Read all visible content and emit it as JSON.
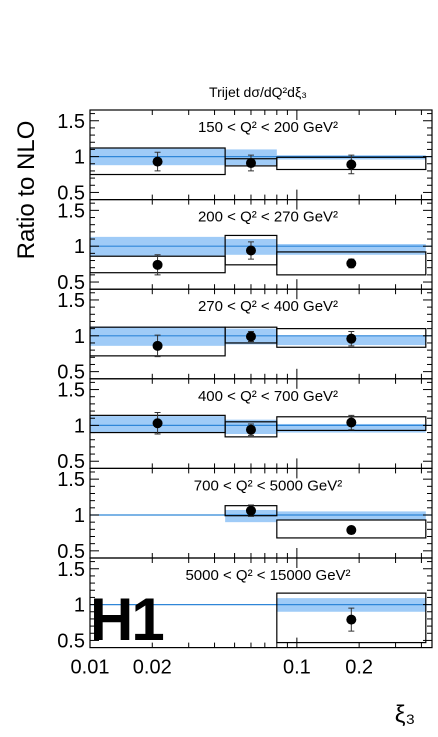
{
  "figure": {
    "title": "Trijet dσ/dQ²dξ₃",
    "ylabel": "Ratio to NLO",
    "xlabel": "ξ₃",
    "logo": "H1"
  },
  "chart_data": {
    "type": "scatter",
    "x_scale": "log",
    "xlim": [
      0.01,
      0.45
    ],
    "ylim": [
      0.4,
      1.65
    ],
    "x_ticks": [
      {
        "v": 0.01,
        "label": "0.01"
      },
      {
        "v": 0.02,
        "label": "0.02"
      },
      {
        "v": 0.1,
        "label": "0.1"
      },
      {
        "v": 0.2,
        "label": "0.2"
      }
    ],
    "y_ticks": [
      {
        "v": 0.5,
        "label": "0.5"
      },
      {
        "v": 1,
        "label": "1"
      },
      {
        "v": 1.5,
        "label": "1.5"
      }
    ],
    "panels": [
      {
        "label": "150 < Q² < 200 GeV²",
        "bins": [
          {
            "xlo": 0.01,
            "xhi": 0.045,
            "y": 0.93,
            "err": 0.13,
            "sys_lo": 0.75,
            "sys_hi": 1.12,
            "band_lo": 0.88,
            "band_hi": 1.12
          },
          {
            "xlo": 0.045,
            "xhi": 0.08,
            "y": 0.91,
            "err": 0.11,
            "sys_lo": 0.87,
            "sys_hi": 0.97,
            "band_lo": 0.88,
            "band_hi": 1.1
          },
          {
            "xlo": 0.08,
            "xhi": 0.42,
            "y": 0.89,
            "err": 0.13,
            "sys_lo": 0.82,
            "sys_hi": 0.99,
            "band_lo": 0.96,
            "band_hi": 1.02
          }
        ]
      },
      {
        "label": "200 < Q² < 270 GeV²",
        "bins": [
          {
            "xlo": 0.01,
            "xhi": 0.045,
            "y": 0.74,
            "err": 0.14,
            "sys_lo": 0.63,
            "sys_hi": 0.86,
            "band_lo": 0.86,
            "band_hi": 1.13
          },
          {
            "xlo": 0.045,
            "xhi": 0.08,
            "y": 0.94,
            "err": 0.12,
            "sys_lo": 0.74,
            "sys_hi": 1.15,
            "band_lo": 0.88,
            "band_hi": 1.1
          },
          {
            "xlo": 0.08,
            "xhi": 0.42,
            "y": 0.76,
            "err": 0.06,
            "sys_lo": 0.6,
            "sys_hi": 0.92,
            "band_lo": 0.88,
            "band_hi": 1.03
          }
        ]
      },
      {
        "label": "270 < Q² < 400 GeV²",
        "bins": [
          {
            "xlo": 0.01,
            "xhi": 0.045,
            "y": 0.86,
            "err": 0.15,
            "sys_lo": 0.72,
            "sys_hi": 1.12,
            "band_lo": 0.86,
            "band_hi": 1.13
          },
          {
            "xlo": 0.045,
            "xhi": 0.08,
            "y": 0.99,
            "err": 0.07,
            "sys_lo": 0.9,
            "sys_hi": 1.12,
            "band_lo": 0.88,
            "band_hi": 1.1
          },
          {
            "xlo": 0.08,
            "xhi": 0.42,
            "y": 0.96,
            "err": 0.1,
            "sys_lo": 0.84,
            "sys_hi": 1.1,
            "band_lo": 0.87,
            "band_hi": 1.0
          }
        ]
      },
      {
        "label": "400 < Q² < 700 GeV²",
        "bins": [
          {
            "xlo": 0.01,
            "xhi": 0.045,
            "y": 1.03,
            "err": 0.15,
            "sys_lo": 0.9,
            "sys_hi": 1.14,
            "band_lo": 0.9,
            "band_hi": 1.13
          },
          {
            "xlo": 0.045,
            "xhi": 0.08,
            "y": 0.94,
            "err": 0.08,
            "sys_lo": 0.84,
            "sys_hi": 1.05,
            "band_lo": 0.88,
            "band_hi": 1.08
          },
          {
            "xlo": 0.08,
            "xhi": 0.42,
            "y": 1.04,
            "err": 0.1,
            "sys_lo": 0.93,
            "sys_hi": 1.12,
            "band_lo": 0.9,
            "band_hi": 1.02
          }
        ]
      },
      {
        "label": "700 < Q² < 5000 GeV²",
        "bins": [
          {
            "xlo": 0.045,
            "xhi": 0.08,
            "y": 1.06,
            "err": 0.08,
            "sys_lo": 0.99,
            "sys_hi": 1.13,
            "band_lo": 0.9,
            "band_hi": 1.07
          },
          {
            "xlo": 0.08,
            "xhi": 0.42,
            "y": 0.79,
            "err": 0.05,
            "sys_lo": 0.68,
            "sys_hi": 0.93,
            "band_lo": 0.93,
            "band_hi": 1.05
          }
        ]
      },
      {
        "label": "5000 < Q² < 15000 GeV²",
        "bins": [
          {
            "xlo": 0.08,
            "xhi": 0.42,
            "y": 0.79,
            "err": 0.16,
            "sys_lo": 0.47,
            "sys_hi": 1.16,
            "band_lo": 0.9,
            "band_hi": 1.09
          }
        ]
      }
    ],
    "colors": {
      "band": "#9fcbf7",
      "unity_line": "#2f86d8",
      "marker": "#000000"
    }
  }
}
